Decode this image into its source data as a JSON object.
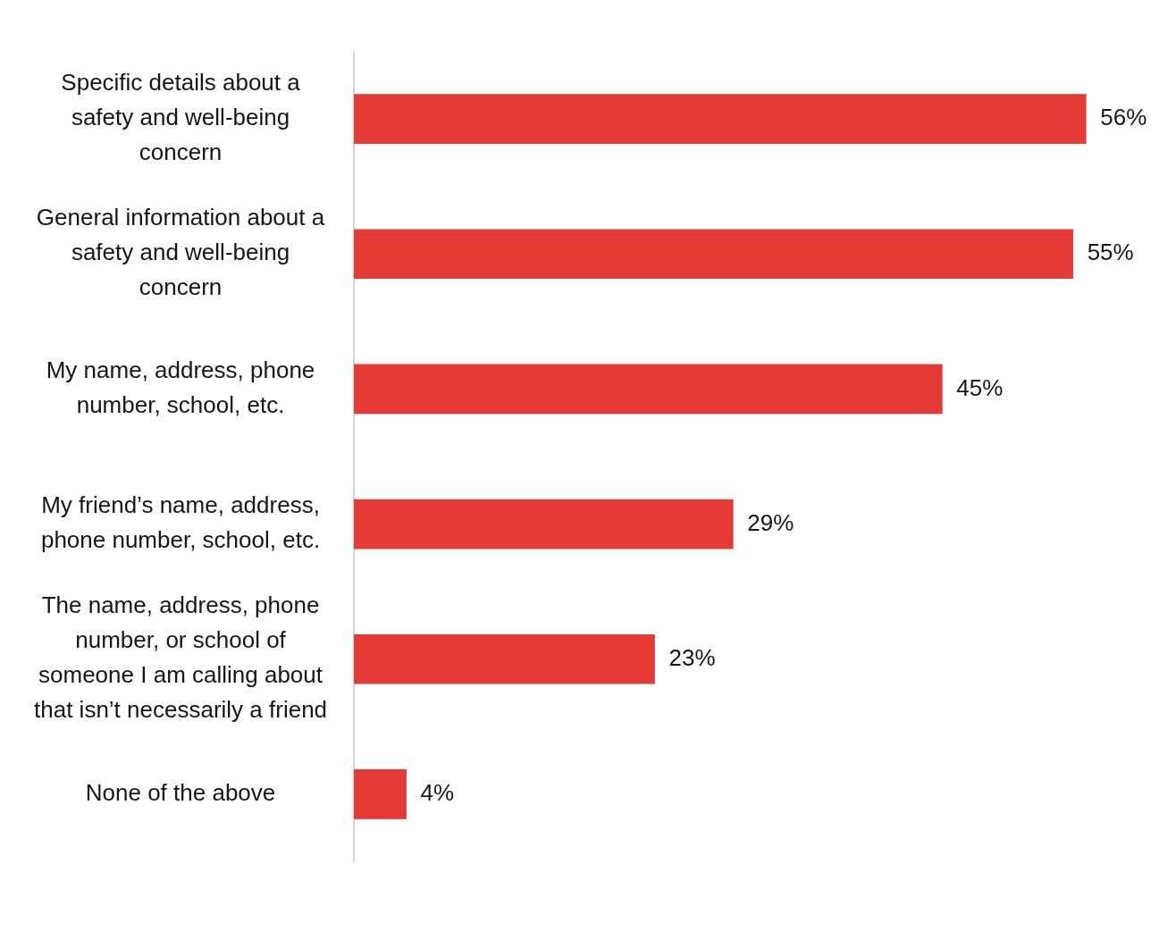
{
  "chart_data": {
    "type": "bar",
    "orientation": "horizontal",
    "categories": [
      "Specific details about a safety and well-being concern",
      "General information about a safety and well-being concern",
      "My name, address, phone number, school, etc.",
      "My friend’s name, address, phone number, school, etc.",
      "The name, address, phone number, or school of someone I am calling about that isn’t necessarily a friend",
      "None of the above"
    ],
    "values": [
      56,
      55,
      45,
      29,
      23,
      4
    ],
    "value_labels": [
      "56%",
      "55%",
      "45%",
      "29%",
      "23%",
      "4%"
    ],
    "color": "#e53935"
  }
}
